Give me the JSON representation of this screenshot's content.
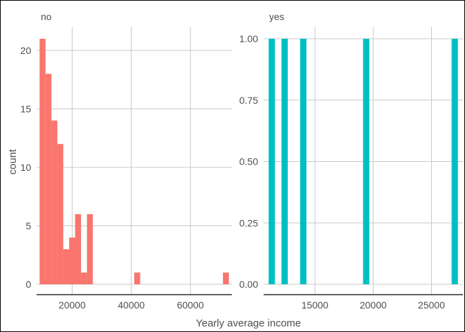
{
  "chart_data": {
    "type": "bar",
    "subtype": "histogram-faceted",
    "xlabel": "Yearly average income",
    "ylabel": "count",
    "grid": true,
    "legend": "none",
    "panels": [
      {
        "facet_label": "no",
        "color": "#F8766D",
        "xlim": [
          8000,
          74000
        ],
        "ylim": [
          0,
          21
        ],
        "x_ticks": [
          20000,
          40000,
          60000
        ],
        "y_ticks": [
          0,
          5,
          10,
          15,
          20
        ],
        "bin_width": 2000,
        "bins_x": [
          10000,
          12000,
          14000,
          16000,
          18000,
          20000,
          22000,
          24000,
          26000,
          28000,
          42000,
          72000
        ],
        "counts": [
          21,
          18,
          14,
          12,
          3,
          4,
          6,
          1,
          6,
          0,
          1,
          1
        ]
      },
      {
        "facet_label": "yes",
        "color": "#00BFC4",
        "xlim": [
          10600,
          27700
        ],
        "ylim": [
          0,
          1
        ],
        "x_ticks": [
          15000,
          20000,
          25000
        ],
        "y_ticks": [
          "0.00",
          "0.25",
          "0.50",
          "0.75",
          "1.00"
        ],
        "bin_width": 540,
        "bins_x": [
          11300,
          12400,
          14000,
          19400,
          27000
        ],
        "counts": [
          1,
          1,
          1,
          1,
          1
        ]
      }
    ]
  }
}
